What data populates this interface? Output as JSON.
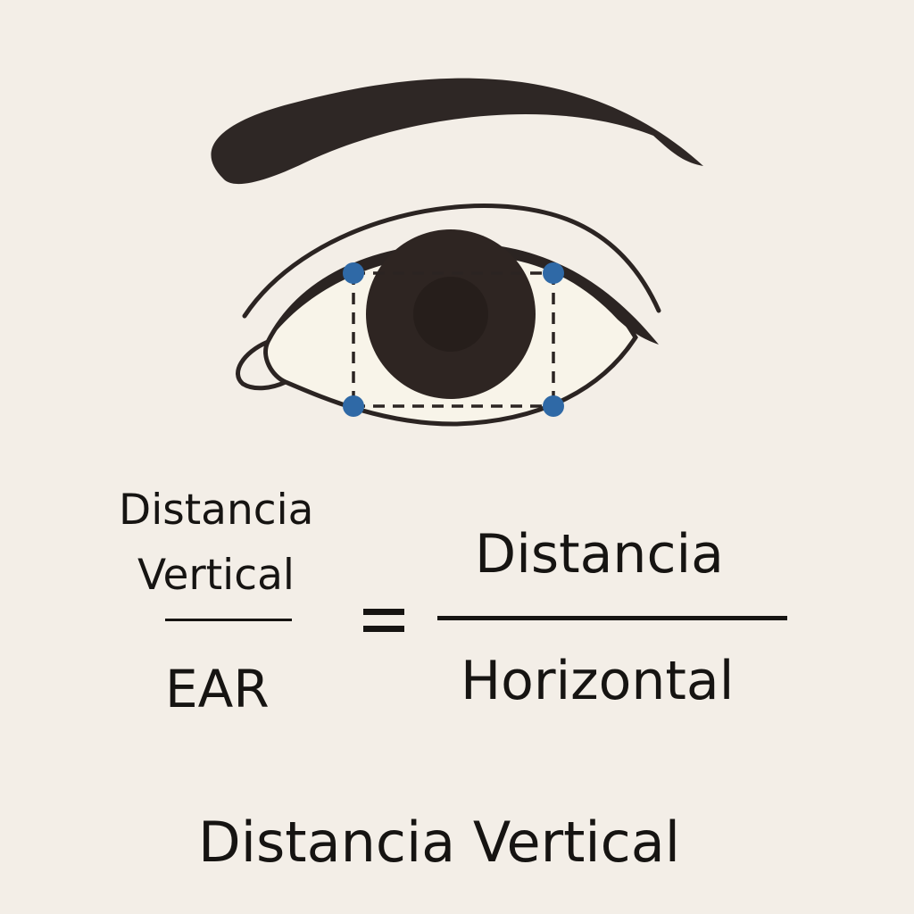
{
  "left_fraction": {
    "numerator_line1": "Distancia",
    "numerator_line2": "Vertical",
    "denominator": "EAR"
  },
  "right_fraction": {
    "numerator": "Distancia",
    "denominator": "Horizontal"
  },
  "footer": {
    "text": "Distancia Vertical"
  },
  "colors": {
    "background": "#f3eee7",
    "ink": "#161412",
    "landmark": "#2f69a6",
    "sclera": "#f8f4e9",
    "iris": "#2e2522",
    "pupil": "#261e1b"
  }
}
